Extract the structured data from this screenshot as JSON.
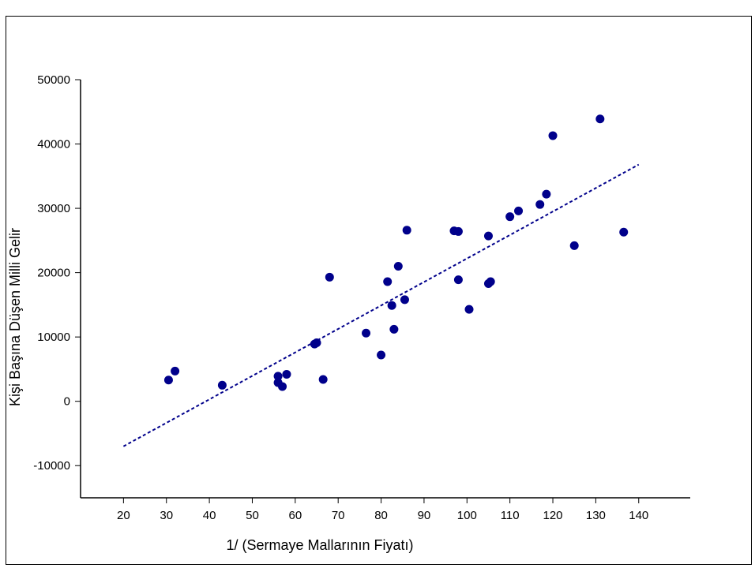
{
  "chart_data": {
    "type": "scatter",
    "xlabel": "1/ (Sermaye Mallarının Fiyatı)",
    "ylabel": "Kişi Başına Düşen Milli Gelir",
    "xlim": [
      10,
      152
    ],
    "ylim": [
      -15000,
      50000
    ],
    "x_ticks": [
      20,
      30,
      40,
      50,
      60,
      70,
      80,
      90,
      100,
      110,
      120,
      130,
      140
    ],
    "y_ticks": [
      -10000,
      0,
      10000,
      20000,
      30000,
      40000,
      50000
    ],
    "grid": false,
    "marker_color": "#00008B",
    "trend_color": "#00008B",
    "trendline": {
      "x": [
        20,
        140
      ],
      "y": [
        -7000,
        36800
      ]
    },
    "series": [
      {
        "points": [
          {
            "x": 30.5,
            "y": 3300
          },
          {
            "x": 32,
            "y": 4700
          },
          {
            "x": 43,
            "y": 2500
          },
          {
            "x": 56,
            "y": 3900
          },
          {
            "x": 56,
            "y": 2900
          },
          {
            "x": 57,
            "y": 2300
          },
          {
            "x": 58,
            "y": 4200
          },
          {
            "x": 64.5,
            "y": 8900
          },
          {
            "x": 65,
            "y": 9100
          },
          {
            "x": 66.5,
            "y": 3400
          },
          {
            "x": 68,
            "y": 19300
          },
          {
            "x": 76.5,
            "y": 10600
          },
          {
            "x": 80,
            "y": 7200
          },
          {
            "x": 81.5,
            "y": 18600
          },
          {
            "x": 82.5,
            "y": 14900
          },
          {
            "x": 83,
            "y": 11200
          },
          {
            "x": 84,
            "y": 21000
          },
          {
            "x": 85.5,
            "y": 15800
          },
          {
            "x": 86,
            "y": 26600
          },
          {
            "x": 97,
            "y": 26500
          },
          {
            "x": 98,
            "y": 26400
          },
          {
            "x": 98,
            "y": 18900
          },
          {
            "x": 100.5,
            "y": 14300
          },
          {
            "x": 105,
            "y": 25700
          },
          {
            "x": 105,
            "y": 18300
          },
          {
            "x": 105.5,
            "y": 18600
          },
          {
            "x": 110,
            "y": 28700
          },
          {
            "x": 112,
            "y": 29600
          },
          {
            "x": 117,
            "y": 30600
          },
          {
            "x": 118.5,
            "y": 32200
          },
          {
            "x": 120,
            "y": 41300
          },
          {
            "x": 125,
            "y": 24200
          },
          {
            "x": 131,
            "y": 43900
          },
          {
            "x": 136.5,
            "y": 26300
          }
        ]
      }
    ]
  }
}
